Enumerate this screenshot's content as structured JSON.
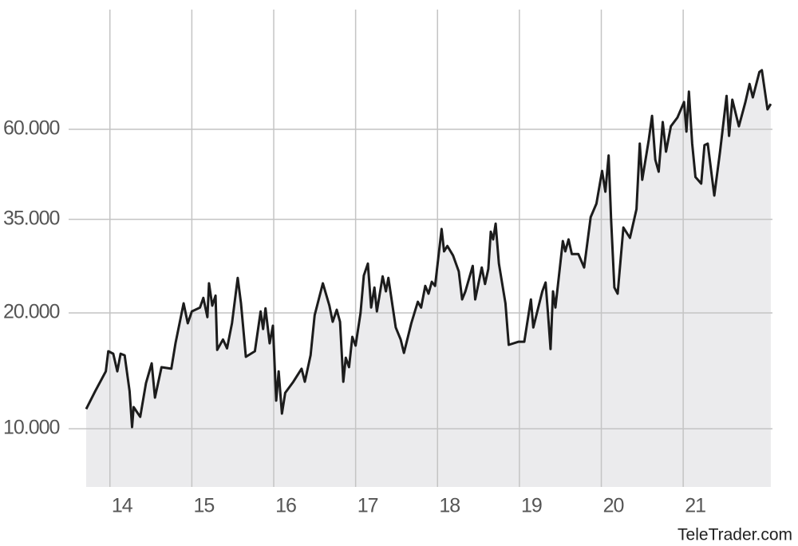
{
  "chart_data": {
    "type": "line",
    "x": [
      13.71,
      13.82,
      13.95,
      13.98,
      14.04,
      14.09,
      14.13,
      14.18,
      14.24,
      14.27,
      14.29,
      14.37,
      14.44,
      14.51,
      14.55,
      14.63,
      14.75,
      14.8,
      14.9,
      14.95,
      15.0,
      15.1,
      15.14,
      15.19,
      15.21,
      15.25,
      15.29,
      15.31,
      15.38,
      15.43,
      15.49,
      15.56,
      15.6,
      15.66,
      15.77,
      15.84,
      15.87,
      15.9,
      15.95,
      15.99,
      16.03,
      16.06,
      16.1,
      16.14,
      16.24,
      16.34,
      16.38,
      16.45,
      16.5,
      16.6,
      16.68,
      16.72,
      16.77,
      16.81,
      16.85,
      16.88,
      16.92,
      16.96,
      17.0,
      17.06,
      17.1,
      17.15,
      17.19,
      17.23,
      17.26,
      17.33,
      17.37,
      17.4,
      17.49,
      17.55,
      17.59,
      17.68,
      17.76,
      17.8,
      17.85,
      17.89,
      17.93,
      17.97,
      18.05,
      18.08,
      18.12,
      18.19,
      18.26,
      18.3,
      18.34,
      18.43,
      18.46,
      18.54,
      18.58,
      18.62,
      18.65,
      18.68,
      18.71,
      18.75,
      18.83,
      18.87,
      18.99,
      19.06,
      19.14,
      19.17,
      19.28,
      19.32,
      19.35,
      19.38,
      19.41,
      19.44,
      19.53,
      19.56,
      19.6,
      19.64,
      19.72,
      19.79,
      19.87,
      19.94,
      20.01,
      20.05,
      20.09,
      20.12,
      20.16,
      20.2,
      20.27,
      20.35,
      20.43,
      20.47,
      20.5,
      20.58,
      20.62,
      20.66,
      20.7,
      20.75,
      20.79,
      20.85,
      20.93,
      21.01,
      21.04,
      21.07,
      21.11,
      21.15,
      21.22,
      21.26,
      21.3,
      21.38,
      21.45,
      21.53,
      21.56,
      21.6,
      21.68,
      21.76,
      21.81,
      21.85,
      21.93,
      21.96,
      22.03,
      22.07
    ],
    "values": [
      11250,
      12520,
      14100,
      15900,
      15670,
      14100,
      15670,
      15520,
      12520,
      10100,
      11380,
      10740,
      13130,
      14790,
      12050,
      14450,
      14320,
      16670,
      21180,
      18790,
      20180,
      20650,
      21880,
      19500,
      23870,
      20890,
      22180,
      16030,
      17060,
      16180,
      18790,
      24660,
      21180,
      15380,
      15900,
      20180,
      18160,
      20560,
      16670,
      18530,
      11830,
      14100,
      10950,
      12400,
      13250,
      14320,
      13250,
      15520,
      19720,
      23870,
      20890,
      18970,
      20370,
      18970,
      13250,
      15300,
      14450,
      17330,
      16440,
      19990,
      25010,
      26870,
      20650,
      23280,
      20180,
      24890,
      22750,
      24660,
      18330,
      17060,
      15740,
      18790,
      21380,
      20650,
      23500,
      22440,
      24090,
      23500,
      33040,
      28900,
      29850,
      28180,
      25640,
      21680,
      22750,
      26490,
      21680,
      26240,
      23770,
      26000,
      32510,
      31050,
      34120,
      26870,
      21180,
      16520,
      16830,
      16830,
      21680,
      18330,
      22750,
      23990,
      19820,
      16110,
      22750,
      20650,
      30740,
      28900,
      31050,
      28440,
      28440,
      26240,
      35480,
      38460,
      46770,
      41300,
      51280,
      34990,
      23280,
      22440,
      33340,
      31330,
      37210,
      55080,
      44360,
      56360,
      65030,
      50010,
      46560,
      62640,
      52480,
      61100,
      64420,
      70630,
      59160,
      75160,
      55080,
      45080,
      43350,
      54580,
      55080,
      40360,
      52480,
      73280,
      57680,
      71610,
      61100,
      70630,
      78700,
      72610,
      84530,
      85480,
      67610,
      69820
    ],
    "color": "#1c1c1c",
    "fill_color": "#ebebed",
    "xlim": [
      13.71,
      22.09
    ],
    "ylim": [
      7060,
      122800
    ],
    "log_y": true,
    "grid": true,
    "xticks": [
      14,
      15,
      16,
      17,
      18,
      19,
      20,
      21
    ],
    "yticks": [
      {
        "value": 10000,
        "label": "10.000"
      },
      {
        "value": 20000,
        "label": "20.000"
      },
      {
        "value": 35000,
        "label": "35.000"
      },
      {
        "value": 60000,
        "label": "60.000"
      }
    ],
    "source": "TeleTrader.com"
  }
}
